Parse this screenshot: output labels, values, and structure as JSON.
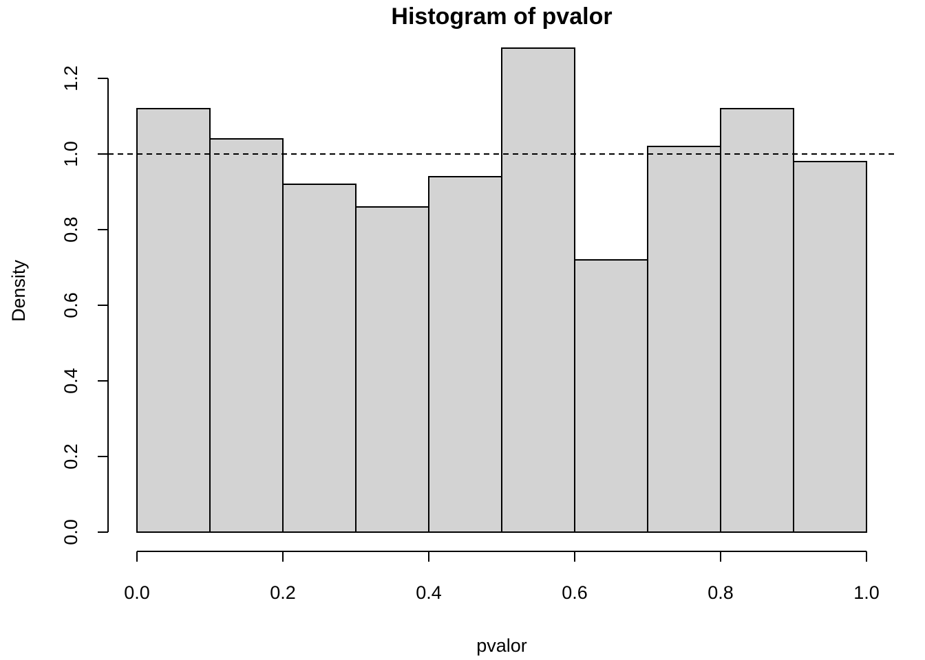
{
  "chart_data": {
    "type": "bar",
    "title": "Histogram of pvalor",
    "xlabel": "pvalor",
    "ylabel": "Density",
    "bins": [
      {
        "start": 0.0,
        "end": 0.1,
        "density": 1.12
      },
      {
        "start": 0.1,
        "end": 0.2,
        "density": 1.04
      },
      {
        "start": 0.2,
        "end": 0.3,
        "density": 0.92
      },
      {
        "start": 0.3,
        "end": 0.4,
        "density": 0.86
      },
      {
        "start": 0.4,
        "end": 0.5,
        "density": 0.94
      },
      {
        "start": 0.5,
        "end": 0.6,
        "density": 1.28
      },
      {
        "start": 0.6,
        "end": 0.7,
        "density": 0.72
      },
      {
        "start": 0.7,
        "end": 0.8,
        "density": 1.02
      },
      {
        "start": 0.8,
        "end": 0.9,
        "density": 1.12
      },
      {
        "start": 0.9,
        "end": 1.0,
        "density": 0.98
      }
    ],
    "xlim": [
      0.0,
      1.0
    ],
    "ylim": [
      0.0,
      1.2
    ],
    "x_ticks": [
      0.0,
      0.2,
      0.4,
      0.6,
      0.8,
      1.0
    ],
    "x_tick_labels": [
      "0.0",
      "0.2",
      "0.4",
      "0.6",
      "0.8",
      "1.0"
    ],
    "y_ticks": [
      0.0,
      0.2,
      0.4,
      0.6,
      0.8,
      1.0,
      1.2
    ],
    "y_tick_labels": [
      "0.0",
      "0.2",
      "0.4",
      "0.6",
      "0.8",
      "1.0",
      "1.2"
    ],
    "reference_line": {
      "y": 1.0,
      "style": "dashed"
    },
    "bar_color": "#d3d3d3",
    "grid": false,
    "legend": "none"
  }
}
